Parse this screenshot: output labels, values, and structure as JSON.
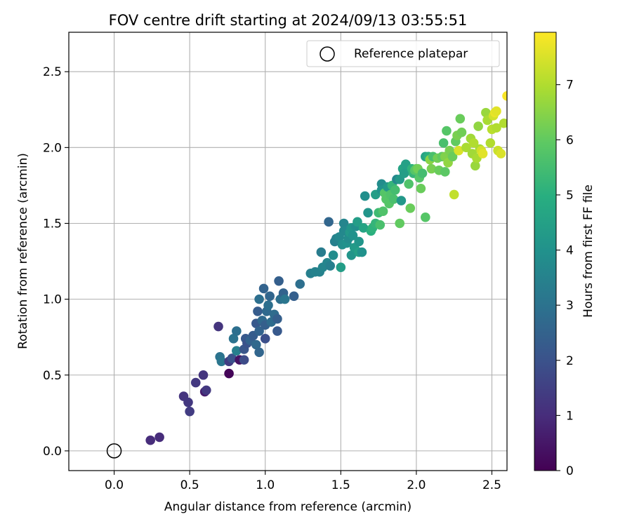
{
  "chart_data": {
    "type": "scatter",
    "title": "FOV centre drift starting at 2024/09/13 03:55:51",
    "xlabel": "Angular distance from reference (arcmin)",
    "ylabel": "Rotation from reference (arcmin)",
    "xlim": [
      -0.3,
      2.6
    ],
    "ylim": [
      -0.13,
      2.76
    ],
    "xticks": [
      "0.0",
      "0.5",
      "1.0",
      "1.5",
      "2.0",
      "2.5"
    ],
    "yticks": [
      "0.0",
      "0.5",
      "1.0",
      "1.5",
      "2.0",
      "2.5"
    ],
    "grid": true,
    "legend": {
      "placement": "upper right",
      "entries": [
        "Reference platepar"
      ]
    },
    "reference_point": {
      "name": "Reference platepar",
      "x": 0.0,
      "y": 0.0
    },
    "colorbar": {
      "label": "Hours from first FF file",
      "min": 0,
      "max": 7.95,
      "ticks": [
        "0",
        "1",
        "2",
        "3",
        "4",
        "5",
        "6",
        "7"
      ],
      "colormap": "viridis"
    },
    "points": [
      [
        0.24,
        0.07,
        1.0
      ],
      [
        0.3,
        0.09,
        1.0
      ],
      [
        0.46,
        0.36,
        1.2
      ],
      [
        0.49,
        0.32,
        1.3
      ],
      [
        0.5,
        0.26,
        1.4
      ],
      [
        0.54,
        0.45,
        1.3
      ],
      [
        0.59,
        0.5,
        1.2
      ],
      [
        0.6,
        0.39,
        0.6
      ],
      [
        0.61,
        0.4,
        1.3
      ],
      [
        0.69,
        0.82,
        1.2
      ],
      [
        0.7,
        0.62,
        3.0
      ],
      [
        0.71,
        0.59,
        3.1
      ],
      [
        0.76,
        0.51,
        0.1
      ],
      [
        0.76,
        0.59,
        1.4
      ],
      [
        0.78,
        0.61,
        2.0
      ],
      [
        0.79,
        0.74,
        3.0
      ],
      [
        0.81,
        0.79,
        2.9
      ],
      [
        0.81,
        0.66,
        3.4
      ],
      [
        0.83,
        0.6,
        0.4
      ],
      [
        0.86,
        0.6,
        1.8
      ],
      [
        0.86,
        0.67,
        2.1
      ],
      [
        0.87,
        0.74,
        2.2
      ],
      [
        0.88,
        0.71,
        2.0
      ],
      [
        0.9,
        0.73,
        2.5
      ],
      [
        0.92,
        0.76,
        2.3
      ],
      [
        0.94,
        0.84,
        2.2
      ],
      [
        0.94,
        0.7,
        2.7
      ],
      [
        0.95,
        0.92,
        2.3
      ],
      [
        0.96,
        0.79,
        2.5
      ],
      [
        0.96,
        0.65,
        2.6
      ],
      [
        0.96,
        1.0,
        2.9
      ],
      [
        0.98,
        0.86,
        2.7
      ],
      [
        0.99,
        1.07,
        2.5
      ],
      [
        1.0,
        0.83,
        2.4
      ],
      [
        1.0,
        0.74,
        1.9
      ],
      [
        1.01,
        0.92,
        2.7
      ],
      [
        1.02,
        0.96,
        2.9
      ],
      [
        1.03,
        1.02,
        2.6
      ],
      [
        1.04,
        0.85,
        2.8
      ],
      [
        1.06,
        0.9,
        2.8
      ],
      [
        1.08,
        0.79,
        2.2
      ],
      [
        1.08,
        0.87,
        2.4
      ],
      [
        1.09,
        1.12,
        2.4
      ],
      [
        1.1,
        1.0,
        2.9
      ],
      [
        1.12,
        1.04,
        2.5
      ],
      [
        1.13,
        1.0,
        3.1
      ],
      [
        1.19,
        1.02,
        2.4
      ],
      [
        1.23,
        1.1,
        2.9
      ],
      [
        1.3,
        1.17,
        3.4
      ],
      [
        1.33,
        1.18,
        3.5
      ],
      [
        1.36,
        1.18,
        3.5
      ],
      [
        1.37,
        1.31,
        3.3
      ],
      [
        1.38,
        1.21,
        3.6
      ],
      [
        1.41,
        1.24,
        3.6
      ],
      [
        1.42,
        1.51,
        2.6
      ],
      [
        1.43,
        1.22,
        3.4
      ],
      [
        1.45,
        1.29,
        3.8
      ],
      [
        1.46,
        1.38,
        3.4
      ],
      [
        1.47,
        1.4,
        3.5
      ],
      [
        1.49,
        1.41,
        3.7
      ],
      [
        1.5,
        1.21,
        4.4
      ],
      [
        1.51,
        1.36,
        3.9
      ],
      [
        1.52,
        1.5,
        3.6
      ],
      [
        1.52,
        1.45,
        3.7
      ],
      [
        1.54,
        1.37,
        4.0
      ],
      [
        1.55,
        1.4,
        3.8
      ],
      [
        1.56,
        1.44,
        4.2
      ],
      [
        1.57,
        1.47,
        4.1
      ],
      [
        1.57,
        1.29,
        4.1
      ],
      [
        1.58,
        1.42,
        4.0
      ],
      [
        1.59,
        1.34,
        4.3
      ],
      [
        1.6,
        1.48,
        3.9
      ],
      [
        1.61,
        1.51,
        4.4
      ],
      [
        1.62,
        1.38,
        4.1
      ],
      [
        1.62,
        1.31,
        4.5
      ],
      [
        1.64,
        1.31,
        4.0
      ],
      [
        1.65,
        1.47,
        4.6
      ],
      [
        1.66,
        1.68,
        3.9
      ],
      [
        1.68,
        1.57,
        4.1
      ],
      [
        1.7,
        1.45,
        5.0
      ],
      [
        1.71,
        1.47,
        5.1
      ],
      [
        1.73,
        1.69,
        4.4
      ],
      [
        1.73,
        1.5,
        5.2
      ],
      [
        1.75,
        1.57,
        5.4
      ],
      [
        1.76,
        1.49,
        5.6
      ],
      [
        1.77,
        1.76,
        3.8
      ],
      [
        1.77,
        1.72,
        4.0
      ],
      [
        1.78,
        1.58,
        5.7
      ],
      [
        1.79,
        1.7,
        5.8
      ],
      [
        1.8,
        1.66,
        5.8
      ],
      [
        1.81,
        1.74,
        4.2
      ],
      [
        1.82,
        1.63,
        5.8
      ],
      [
        1.83,
        1.69,
        5.7
      ],
      [
        1.84,
        1.75,
        5.2
      ],
      [
        1.85,
        1.66,
        5.6
      ],
      [
        1.86,
        1.72,
        5.5
      ],
      [
        1.87,
        1.79,
        3.7
      ],
      [
        1.89,
        1.5,
        6.0
      ],
      [
        1.89,
        1.79,
        4.3
      ],
      [
        1.9,
        1.65,
        4.2
      ],
      [
        1.91,
        1.86,
        4.6
      ],
      [
        1.92,
        1.83,
        4.4
      ],
      [
        1.93,
        1.89,
        4.5
      ],
      [
        1.95,
        1.76,
        5.7
      ],
      [
        1.96,
        1.6,
        6.1
      ],
      [
        1.97,
        1.86,
        5.1
      ],
      [
        1.98,
        1.83,
        5.2
      ],
      [
        1.99,
        1.85,
        5.8
      ],
      [
        2.0,
        1.86,
        5.9
      ],
      [
        2.01,
        1.86,
        6.2
      ],
      [
        2.02,
        1.8,
        5.8
      ],
      [
        2.03,
        1.73,
        6.1
      ],
      [
        2.04,
        1.83,
        5.5
      ],
      [
        2.06,
        1.54,
        5.8
      ],
      [
        2.06,
        1.94,
        4.6
      ],
      [
        2.08,
        1.94,
        5.0
      ],
      [
        2.09,
        1.92,
        6.5
      ],
      [
        2.1,
        1.86,
        6.3
      ],
      [
        2.11,
        1.94,
        5.6
      ],
      [
        2.14,
        1.93,
        6.2
      ],
      [
        2.15,
        1.85,
        6.1
      ],
      [
        2.17,
        1.94,
        6.0
      ],
      [
        2.18,
        2.03,
        5.6
      ],
      [
        2.19,
        1.84,
        5.9
      ],
      [
        2.19,
        1.94,
        6.4
      ],
      [
        2.2,
        2.11,
        5.8
      ],
      [
        2.21,
        1.9,
        6.6
      ],
      [
        2.22,
        1.98,
        6.3
      ],
      [
        2.24,
        1.94,
        6.1
      ],
      [
        2.25,
        1.69,
        7.2
      ],
      [
        2.26,
        2.04,
        6.0
      ],
      [
        2.27,
        2.08,
        6.3
      ],
      [
        2.28,
        1.98,
        7.5
      ],
      [
        2.29,
        2.19,
        6.1
      ],
      [
        2.3,
        2.1,
        6.2
      ],
      [
        2.33,
        2.0,
        6.9
      ],
      [
        2.36,
        2.06,
        6.8
      ],
      [
        2.37,
        1.96,
        6.8
      ],
      [
        2.38,
        2.03,
        7.0
      ],
      [
        2.39,
        1.88,
        6.7
      ],
      [
        2.4,
        1.93,
        6.9
      ],
      [
        2.41,
        2.14,
        6.6
      ],
      [
        2.42,
        1.99,
        6.9
      ],
      [
        2.43,
        1.98,
        7.4
      ],
      [
        2.44,
        1.96,
        7.6
      ],
      [
        2.46,
        2.23,
        6.7
      ],
      [
        2.47,
        2.18,
        6.9
      ],
      [
        2.49,
        2.03,
        7.0
      ],
      [
        2.5,
        2.12,
        7.1
      ],
      [
        2.51,
        2.21,
        7.4
      ],
      [
        2.52,
        2.23,
        7.7
      ],
      [
        2.53,
        2.24,
        7.6
      ],
      [
        2.53,
        2.13,
        7.0
      ],
      [
        2.54,
        1.98,
        7.3
      ],
      [
        2.56,
        1.96,
        7.5
      ],
      [
        2.58,
        2.16,
        7.0
      ],
      [
        2.6,
        2.34,
        7.9
      ]
    ]
  }
}
